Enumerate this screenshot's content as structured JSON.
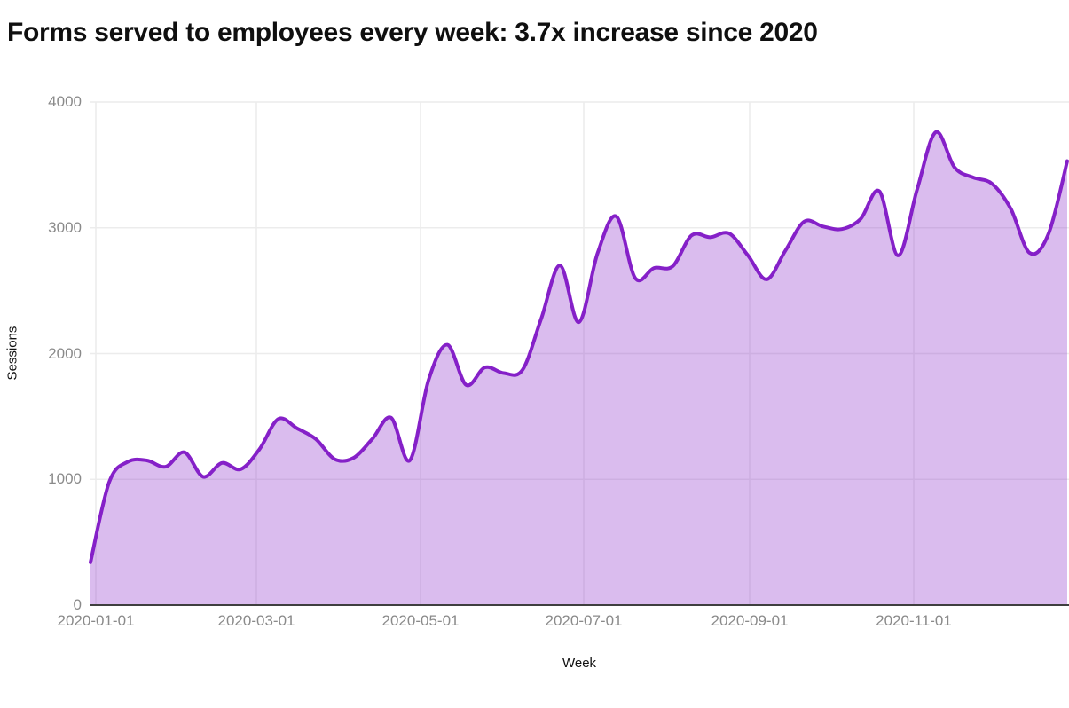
{
  "title": "Forms served to employees every week: 3.7x increase since 2020",
  "chart_data": {
    "type": "area",
    "title": "Forms served to employees every week: 3.7x increase since 2020",
    "xlabel": "Week",
    "ylabel": "Sessions",
    "x_tick_labels": [
      "2020-01-01",
      "2020-03-01",
      "2020-05-01",
      "2020-07-01",
      "2020-09-01",
      "2020-11-01"
    ],
    "y_tick_labels": [
      "0",
      "1000",
      "2000",
      "3000",
      "4000"
    ],
    "ylim": [
      0,
      4000
    ],
    "grid": true,
    "legend_position": "none",
    "series": [
      {
        "name": "Sessions",
        "x_interval": "weekly",
        "x": [
          "2019-12-30",
          "2020-01-06",
          "2020-01-13",
          "2020-01-20",
          "2020-01-27",
          "2020-02-03",
          "2020-02-10",
          "2020-02-17",
          "2020-02-24",
          "2020-03-02",
          "2020-03-09",
          "2020-03-16",
          "2020-03-23",
          "2020-03-30",
          "2020-04-06",
          "2020-04-13",
          "2020-04-20",
          "2020-04-27",
          "2020-05-04",
          "2020-05-11",
          "2020-05-18",
          "2020-05-25",
          "2020-06-01",
          "2020-06-08",
          "2020-06-15",
          "2020-06-22",
          "2020-06-29",
          "2020-07-06",
          "2020-07-13",
          "2020-07-20",
          "2020-07-27",
          "2020-08-03",
          "2020-08-10",
          "2020-08-17",
          "2020-08-24",
          "2020-08-31",
          "2020-09-07",
          "2020-09-14",
          "2020-09-21",
          "2020-09-28",
          "2020-10-05",
          "2020-10-12",
          "2020-10-19",
          "2020-10-26",
          "2020-11-02",
          "2020-11-09",
          "2020-11-16",
          "2020-11-23",
          "2020-11-30",
          "2020-12-07",
          "2020-12-14",
          "2020-12-21",
          "2020-12-28"
        ],
        "values": [
          340,
          980,
          1140,
          1150,
          1100,
          1215,
          1020,
          1130,
          1080,
          1240,
          1480,
          1405,
          1320,
          1160,
          1170,
          1320,
          1490,
          1150,
          1790,
          2070,
          1750,
          1890,
          1845,
          1870,
          2280,
          2700,
          2250,
          2800,
          3090,
          2600,
          2680,
          2695,
          2940,
          2925,
          2955,
          2780,
          2590,
          2820,
          3050,
          3010,
          2990,
          3070,
          3290,
          2780,
          3300,
          3760,
          3480,
          3400,
          3350,
          3150,
          2800,
          2950,
          3530
        ]
      }
    ],
    "colors": {
      "line": "#8520c8",
      "fill": "rgba(133,32,200,0.30)",
      "grid": "#ececec",
      "axis_line": "#3f3f3f",
      "tick_text": "#8a8a8a",
      "title_text": "#0f0f0f"
    }
  }
}
